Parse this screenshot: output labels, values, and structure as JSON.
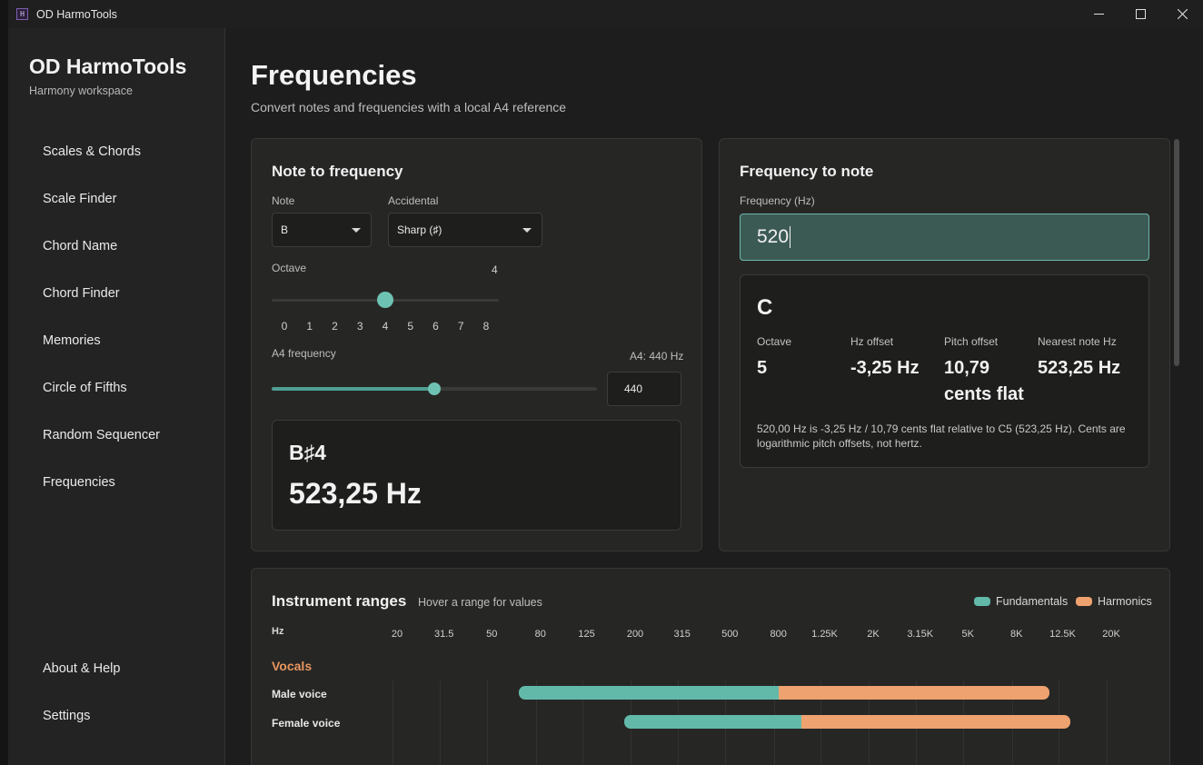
{
  "window": {
    "title": "OD HarmoTools",
    "icon_glyph": "H"
  },
  "sidebar": {
    "brand": "OD HarmoTools",
    "subtitle": "Harmony workspace",
    "items": [
      {
        "label": "Scales & Chords"
      },
      {
        "label": "Scale Finder"
      },
      {
        "label": "Chord Name"
      },
      {
        "label": "Chord Finder"
      },
      {
        "label": "Memories"
      },
      {
        "label": "Circle of Fifths"
      },
      {
        "label": "Random Sequencer"
      },
      {
        "label": "Frequencies"
      }
    ],
    "bottom_items": [
      {
        "label": "About & Help"
      },
      {
        "label": "Settings"
      }
    ]
  },
  "page": {
    "title": "Frequencies",
    "subtitle": "Convert notes and frequencies with a local A4 reference"
  },
  "note_to_freq": {
    "title": "Note to frequency",
    "note_label": "Note",
    "note_value": "B",
    "accidental_label": "Accidental",
    "accidental_value": "Sharp (♯)",
    "octave_label": "Octave",
    "octave_value": "4",
    "octave_ticks": [
      "0",
      "1",
      "2",
      "3",
      "4",
      "5",
      "6",
      "7",
      "8"
    ],
    "octave_level": 0.5,
    "a4_label": "A4 frequency",
    "a4_readout": "A4: 440 Hz",
    "a4_value": "440",
    "a4_level": 0.5,
    "result_note": "B♯4",
    "result_freq": "523,25 Hz"
  },
  "freq_to_note": {
    "title": "Frequency to note",
    "freq_label": "Frequency (Hz)",
    "freq_value": "520",
    "note": "C",
    "stats": [
      {
        "label": "Octave",
        "value": "5"
      },
      {
        "label": "Hz offset",
        "value": "-3,25 Hz"
      },
      {
        "label": "Pitch offset",
        "value": "10,79 cents flat"
      },
      {
        "label": "Nearest note Hz",
        "value": "523,25 Hz"
      }
    ],
    "description": "520,00 Hz is -3,25 Hz / 10,79 cents flat relative to C5 (523,25 Hz). Cents are logarithmic pitch offsets, not hertz."
  },
  "ranges": {
    "title": "Instrument ranges",
    "hint": "Hover a range for values",
    "legend": [
      {
        "label": "Fundamentals",
        "color": "#62b9aa"
      },
      {
        "label": "Harmonics",
        "color": "#eea26f"
      }
    ],
    "axis_label": "Hz",
    "ticks": [
      "20",
      "31.5",
      "50",
      "80",
      "125",
      "200",
      "315",
      "500",
      "800",
      "1.25K",
      "2K",
      "3.15K",
      "5K",
      "8K",
      "12.5K",
      "20K"
    ],
    "group": "Vocals",
    "group_color": "#e8955e",
    "rows": [
      {
        "label": "Male voice",
        "fund_hz": [
          65,
          800
        ],
        "harm_hz": [
          800,
          11000
        ]
      },
      {
        "label": "Female voice",
        "fund_hz": [
          180,
          1000
        ],
        "harm_hz": [
          1000,
          13500
        ]
      }
    ]
  }
}
